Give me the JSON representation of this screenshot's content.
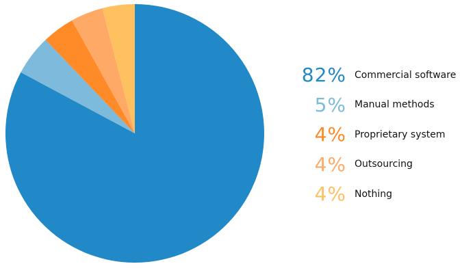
{
  "chart_data": {
    "type": "pie",
    "title": "",
    "slices": [
      {
        "label": "Commercial software",
        "value": 82,
        "display": "82%",
        "color": "#2189C8"
      },
      {
        "label": "Manual methods",
        "value": 5,
        "display": "5%",
        "color": "#7DBADB"
      },
      {
        "label": "Proprietary system",
        "value": 4,
        "display": "4%",
        "color": "#FF8A28"
      },
      {
        "label": "Outsourcing",
        "value": 4,
        "display": "4%",
        "color": "#FFA966"
      },
      {
        "label": "Nothing",
        "value": 4,
        "display": "4%",
        "color": "#FFC160"
      }
    ],
    "legend_position": "right"
  }
}
